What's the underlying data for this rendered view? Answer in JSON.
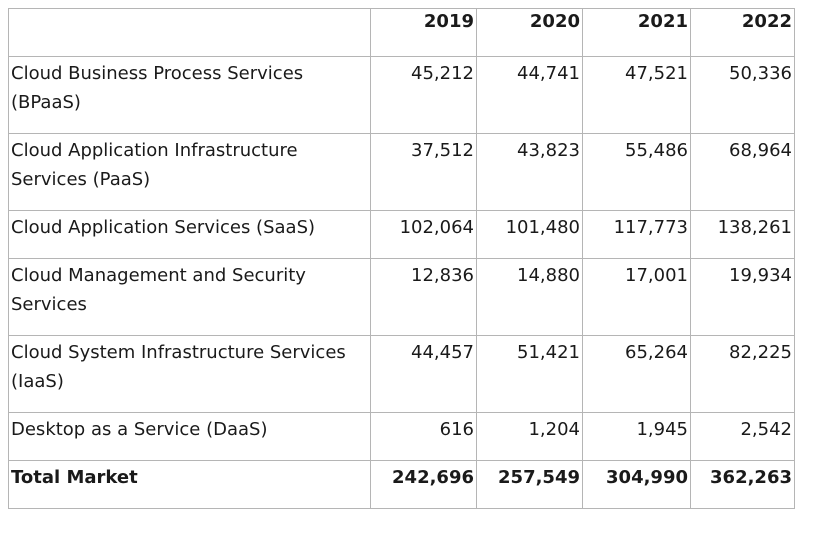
{
  "table": {
    "years": [
      "2019",
      "2020",
      "2021",
      "2022"
    ],
    "rows": [
      {
        "label": "Cloud Business Process Services (BPaaS)",
        "values": [
          "45,212",
          "44,741",
          "47,521",
          "50,336"
        ]
      },
      {
        "label": "Cloud Application Infrastructure Services (PaaS)",
        "values": [
          "37,512",
          "43,823",
          "55,486",
          "68,964"
        ]
      },
      {
        "label": "Cloud Application Services (SaaS)",
        "values": [
          "102,064",
          "101,480",
          "117,773",
          "138,261"
        ]
      },
      {
        "label": "Cloud Management and Security Services",
        "values": [
          "12,836",
          "14,880",
          "17,001",
          "19,934"
        ]
      },
      {
        "label": "Cloud System Infrastructure Services (IaaS)",
        "values": [
          "44,457",
          "51,421",
          "65,264",
          "82,225"
        ]
      },
      {
        "label": "Desktop as a Service (DaaS)",
        "values": [
          "616",
          "1,204",
          "1,945",
          "2,542"
        ]
      }
    ],
    "total": {
      "label": "Total Market",
      "values": [
        "242,696",
        "257,549",
        "304,990",
        "362,263"
      ]
    }
  }
}
